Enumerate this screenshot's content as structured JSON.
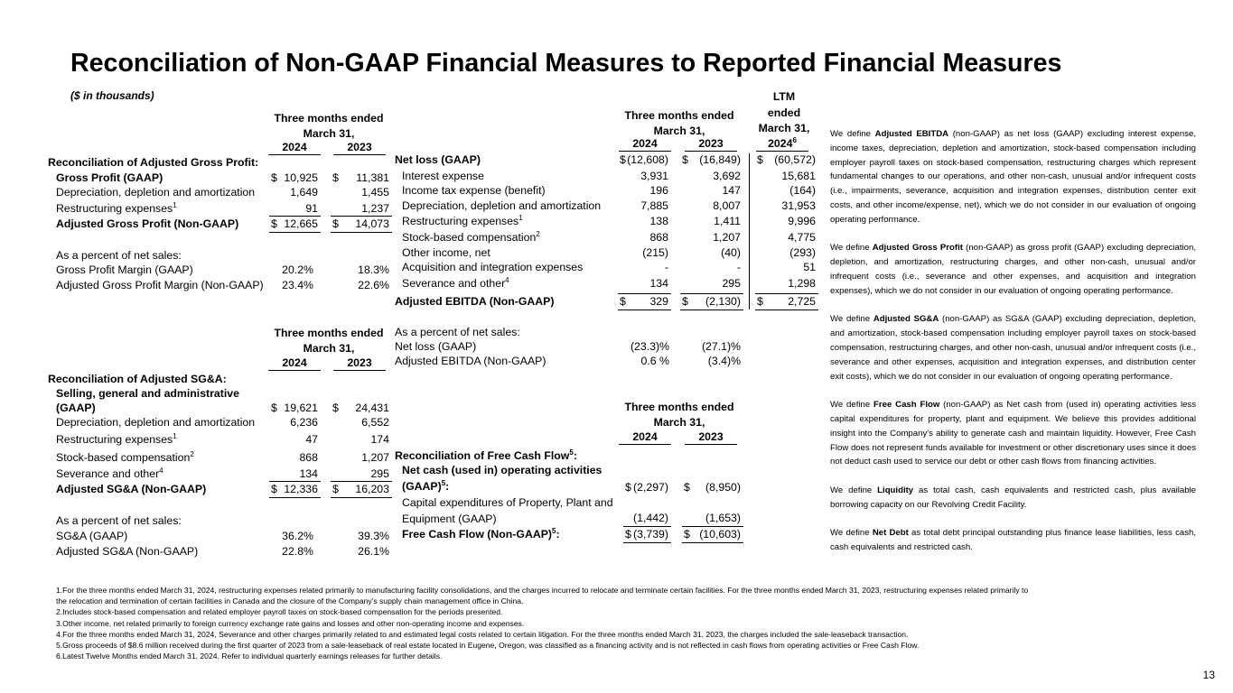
{
  "header": {
    "title": "Reconciliation of Non-GAAP Financial Measures to Reported Financial Measures",
    "subtitle": "($ in thousands)"
  },
  "tables": {
    "gross_profit": {
      "header": "Three months ended March 31,",
      "years": [
        "2024",
        "2023"
      ],
      "title": "Reconciliation of Adjusted Gross Profit:",
      "rows": [
        {
          "label": "Gross Profit (GAAP)",
          "currency": "$",
          "values": [
            "10,925",
            "11,381"
          ]
        },
        {
          "label": "Depreciation, depletion and amortization",
          "values": [
            "1,649",
            "1,455"
          ]
        },
        {
          "label": "Restructuring expenses",
          "note": "1",
          "values": [
            "91",
            "1,237"
          ]
        },
        {
          "label": "Adjusted Gross Profit (Non-GAAP)",
          "currency": "$",
          "values": [
            "12,665",
            "14,073"
          ]
        }
      ],
      "percent_heading": "As a percent of net sales:",
      "percent_rows": [
        {
          "label": "Gross Profit Margin (GAAP)",
          "values": [
            "20.2%",
            "18.3%"
          ]
        },
        {
          "label": "Adjusted Gross Profit Margin (Non-GAAP)",
          "values": [
            "23.4%",
            "22.6%"
          ]
        }
      ]
    },
    "adjusted_sga": {
      "header": "Three months ended March 31,",
      "years": [
        "2024",
        "2023"
      ],
      "title": "Reconciliation of Adjusted SG&A:",
      "rows": [
        {
          "label": "Selling, general and administrative (GAAP)",
          "currency": "$",
          "values": [
            "19,621",
            "24,431"
          ]
        },
        {
          "label": "Depreciation, depletion and amortization",
          "values": [
            "6,236",
            "6,552"
          ]
        },
        {
          "label": "Restructuring expenses",
          "note": "1",
          "values": [
            "47",
            "174"
          ]
        },
        {
          "label": "Stock-based compensation",
          "note": "2",
          "values": [
            "868",
            "1,207"
          ]
        },
        {
          "label": "Severance and other",
          "note": "4",
          "values": [
            "134",
            "295"
          ]
        },
        {
          "label": "Adjusted SG&A (Non-GAAP)",
          "currency": "$",
          "values": [
            "12,336",
            "16,203"
          ]
        }
      ],
      "percent_heading": "As a percent of net sales:",
      "percent_rows": [
        {
          "label": "SG&A (GAAP)",
          "values": [
            "36.2%",
            "39.3%"
          ]
        },
        {
          "label": "Adjusted SG&A (Non-GAAP)",
          "values": [
            "22.8%",
            "26.1%"
          ]
        }
      ]
    },
    "adjusted_ebitda": {
      "header": "Three months ended March 31,",
      "ltm_header": "LTM ended March 31,",
      "years": [
        "2024",
        "2023",
        "2024"
      ],
      "ltm_year_note": "6",
      "rows": [
        {
          "label": "Net loss (GAAP)",
          "currency": "$",
          "values": [
            "(12,608)",
            "(16,849)",
            "(60,572)"
          ]
        },
        {
          "label": "Interest expense",
          "values": [
            "3,931",
            "3,692",
            "15,681"
          ]
        },
        {
          "label": "Income tax expense (benefit)",
          "values": [
            "196",
            "147",
            "(164)"
          ]
        },
        {
          "label": "Depreciation, depletion and amortization",
          "values": [
            "7,885",
            "8,007",
            "31,953"
          ]
        },
        {
          "label": "Restructuring expenses",
          "note": "1",
          "values": [
            "138",
            "1,411",
            "9,996"
          ]
        },
        {
          "label": "Stock-based compensation",
          "note": "2",
          "values": [
            "868",
            "1,207",
            "4,775"
          ]
        },
        {
          "label": "Other income, net",
          "values": [
            "(215)",
            "(40)",
            "(293)"
          ]
        },
        {
          "label": "Acquisition and integration expenses",
          "values": [
            "-",
            "-",
            "51"
          ]
        },
        {
          "label": "Severance and other",
          "note": "4",
          "values": [
            "134",
            "295",
            "1,298"
          ]
        },
        {
          "label": "Adjusted EBITDA (Non-GAAP)",
          "currency": "$",
          "values": [
            "329",
            "(2,130)",
            "2,725"
          ]
        }
      ],
      "percent_heading": "As a percent of net sales:",
      "percent_rows": [
        {
          "label": "Net loss (GAAP)",
          "values": [
            "(23.3)%",
            "(27.1)%"
          ]
        },
        {
          "label": "Adjusted EBITDA (Non-GAAP)",
          "values": [
            "0.6 %",
            "(3.4)%"
          ]
        }
      ]
    },
    "free_cash_flow": {
      "header": "Three months ended March 31,",
      "years": [
        "2024",
        "2023"
      ],
      "title": "Reconciliation of Free Cash Flow",
      "title_note": "5",
      "title_suffix": ":",
      "rows": [
        {
          "label": "Net cash (used in) operating activities (GAAP)",
          "note": "5",
          "suffix": ":",
          "currency": "$",
          "values": [
            "(2,297)",
            "(8,950)"
          ]
        },
        {
          "label": "Capital expenditures of Property, Plant and Equipment (GAAP)",
          "values": [
            "(1,442)",
            "(1,653)"
          ]
        },
        {
          "label": "Free Cash Flow (Non-GAAP)",
          "note": "5",
          "suffix": ":",
          "currency": "$",
          "values": [
            "(3,739)",
            "(10,603)"
          ]
        }
      ]
    }
  },
  "definitions": [
    {
      "lead": "We define ",
      "term": "Adjusted EBITDA",
      "text": " (non-GAAP) as net loss (GAAP) excluding interest expense, income taxes, depreciation, depletion and amortization, stock-based compensation including employer payroll taxes on stock-based compensation, restructuring charges which represent fundamental changes to our operations, and other non-cash, unusual and/or infrequent costs (i.e., impairments, severance, acquisition and integration expenses, distribution center exit costs, and other income/expense, net), which we do not consider in our evaluation of ongoing operating performance."
    },
    {
      "lead": "We define ",
      "term": "Adjusted Gross Profit",
      "text": " (non-GAAP) as gross profit (GAAP) excluding depreciation, depletion, and amortization, restructuring charges, and other non-cash, unusual and/or infrequent costs (i.e., severance and other expenses, and acquisition and integration expenses), which we do not consider in our evaluation of ongoing operating performance."
    },
    {
      "lead": "We define ",
      "term": "Adjusted SG&A",
      "text": " (non-GAAP) as SG&A (GAAP) excluding depreciation, depletion, and amortization, stock-based compensation including employer payroll taxes on stock-based compensation, restructuring charges, and other non-cash, unusual and/or infrequent costs (i.e., severance and other expenses, acquisition and integration expenses, and distribution center exit costs), which we do not consider in our evaluation of ongoing operating performance."
    },
    {
      "lead": "We define ",
      "term": "Free Cash Flow",
      "text": " (non-GAAP) as Net cash from (used in) operating activities less capital expenditures for property, plant and equipment. We believe this provides additional insight into the Company's ability to generate cash and maintain liquidity. However, Free Cash Flow does not represent funds available for investment or other discretionary uses since it does not deduct cash used to service our debt or other cash flows from financing activities."
    },
    {
      "lead": "We define ",
      "term": "Liquidity",
      "text": " as total cash, cash equivalents and restricted cash, plus available borrowing capacity on our Revolving Credit Facility."
    },
    {
      "lead": "We define ",
      "term": "Net Debt",
      "text": " as total debt principal outstanding plus finance lease liabilities, less cash, cash equivalents and restricted cash."
    }
  ],
  "footnotes": [
    "1.For the three months ended March 31, 2024, restructuring expenses related primarily to manufacturing facility consolidations, and the charges incurred to relocate and terminate certain facilities. For the three months ended March 31, 2023, restructuring expenses related primarily to the relocation and termination of certain facilities in Canada and the closure of the Company's supply chain management office in China.",
    "2.Includes stock-based compensation and related employer payroll taxes on stock-based compensation for the periods presented.",
    "3.Other income, net related primarily to foreign currency exchange rate gains and losses and other non-operating income and expenses.",
    "4.For the three months ended March 31, 2024, Severance and other charges primarily related to and estimated legal costs related to certain litigation. For the three months ended March 31, 2023, the charges included the sale-leaseback transaction.",
    "5.Gross proceeds of $8.6 million received during the first quarter of 2023 from a sale-leaseback of real estate located in Eugene, Oregon, was classified as a financing activity and is not reflected in cash flows from operating activities or Free Cash Flow.",
    "6.Latest Twelve Months ended March 31, 2024. Refer to individual quarterly earnings releases for further details."
  ],
  "page_number": "13"
}
